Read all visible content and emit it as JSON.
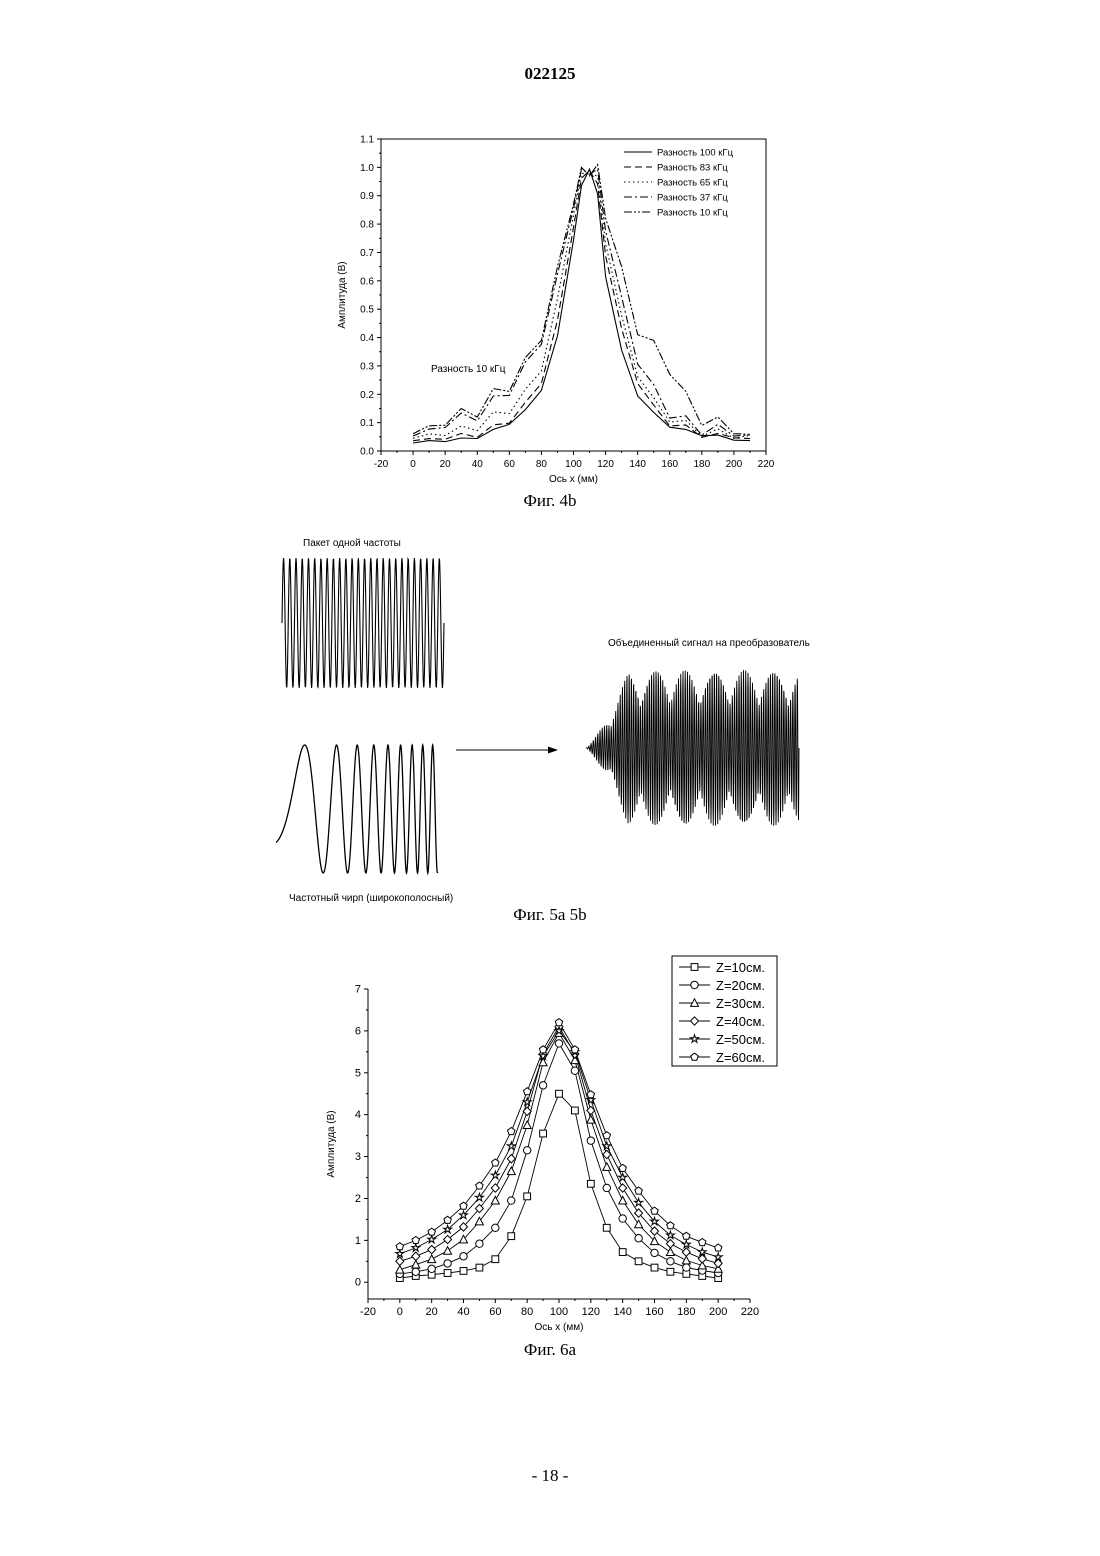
{
  "document": {
    "number": "022125",
    "page_footer": "- 18 -"
  },
  "figures": {
    "fig4b": {
      "caption": "Фиг. 4b",
      "annotation": "Разность 10 кГц"
    },
    "fig5": {
      "caption": "Фиг. 5a 5b",
      "label_single": "Пакет одной частоты",
      "label_chirp": "Частотный чирп (широкополосный)",
      "label_combined": "Объединенный сигнал на преобразователь"
    },
    "fig6a": {
      "caption": "Фиг. 6a"
    }
  },
  "chart_data": [
    {
      "id": "fig4b",
      "type": "line",
      "xlabel": "Ось x (мм)",
      "ylabel": "Амплитуда (В)",
      "xlim": [
        -20,
        220
      ],
      "ylim": [
        0.0,
        1.1
      ],
      "xticks": [
        -20,
        0,
        20,
        40,
        60,
        80,
        100,
        120,
        140,
        160,
        180,
        200,
        220
      ],
      "yticks": [
        "0.0",
        "0.1",
        "0.2",
        "0.3",
        "0.4",
        "0.5",
        "0.6",
        "0.7",
        "0.8",
        "0.9",
        "1.0",
        "1.1"
      ],
      "legend_position": "top-right",
      "series": [
        {
          "name": "Разность 100 кГц",
          "dash": "none",
          "x": [
            0,
            10,
            20,
            30,
            40,
            50,
            60,
            70,
            80,
            90,
            100,
            105,
            110,
            115,
            120,
            130,
            140,
            150,
            160,
            170,
            180,
            190,
            200,
            210
          ],
          "y": [
            0.03,
            0.035,
            0.035,
            0.04,
            0.05,
            0.07,
            0.1,
            0.14,
            0.22,
            0.4,
            0.75,
            0.93,
            1.0,
            0.9,
            0.62,
            0.35,
            0.2,
            0.13,
            0.09,
            0.07,
            0.06,
            0.05,
            0.04,
            0.035
          ]
        },
        {
          "name": "Разность 83 кГц",
          "dash": "7,4",
          "x": [
            0,
            10,
            20,
            30,
            40,
            50,
            60,
            70,
            80,
            90,
            100,
            105,
            110,
            115,
            120,
            130,
            140,
            150,
            160,
            170,
            180,
            190,
            200,
            210
          ],
          "y": [
            0.04,
            0.04,
            0.045,
            0.05,
            0.06,
            0.08,
            0.11,
            0.16,
            0.25,
            0.45,
            0.8,
            0.95,
            1.0,
            0.93,
            0.7,
            0.42,
            0.25,
            0.15,
            0.1,
            0.08,
            0.06,
            0.05,
            0.05,
            0.04
          ]
        },
        {
          "name": "Разность 65 кГц",
          "dash": "1.5,3",
          "x": [
            0,
            10,
            20,
            30,
            40,
            50,
            60,
            70,
            80,
            90,
            100,
            105,
            110,
            115,
            120,
            130,
            140,
            150,
            160,
            170,
            180,
            190,
            200,
            210
          ],
          "y": [
            0.05,
            0.055,
            0.06,
            0.07,
            0.09,
            0.12,
            0.15,
            0.2,
            0.3,
            0.52,
            0.85,
            0.96,
            1.0,
            0.95,
            0.75,
            0.46,
            0.28,
            0.17,
            0.12,
            0.09,
            0.07,
            0.06,
            0.05,
            0.05
          ]
        },
        {
          "name": "Разность 37 кГц",
          "dash": "8,3,2,3",
          "x": [
            0,
            10,
            20,
            30,
            40,
            50,
            60,
            70,
            80,
            90,
            100,
            105,
            110,
            115,
            120,
            130,
            140,
            150,
            160,
            170,
            180,
            190,
            200,
            210
          ],
          "y": [
            0.06,
            0.07,
            0.09,
            0.11,
            0.13,
            0.17,
            0.22,
            0.29,
            0.4,
            0.6,
            0.88,
            0.97,
            1.0,
            0.97,
            0.8,
            0.52,
            0.33,
            0.21,
            0.14,
            0.1,
            0.08,
            0.07,
            0.06,
            0.05
          ]
        },
        {
          "name": "Разность 10 кГц",
          "dash": "8,2,2,2,2,2",
          "x": [
            0,
            10,
            20,
            30,
            40,
            50,
            60,
            70,
            80,
            90,
            100,
            105,
            110,
            115,
            120,
            130,
            140,
            150,
            160,
            170,
            180,
            190,
            200,
            210
          ],
          "y": [
            0.07,
            0.08,
            0.1,
            0.12,
            0.15,
            0.19,
            0.24,
            0.3,
            0.42,
            0.62,
            0.9,
            0.97,
            1.0,
            0.98,
            0.85,
            0.62,
            0.44,
            0.36,
            0.3,
            0.18,
            0.12,
            0.09,
            0.07,
            0.05
          ]
        }
      ]
    },
    {
      "id": "fig6a",
      "type": "line",
      "xlabel": "Ось x (мм)",
      "ylabel": "Амплитуда (В)",
      "xlim": [
        -20,
        220
      ],
      "ylim": [
        -0.4,
        7
      ],
      "xticks": [
        -20,
        0,
        20,
        40,
        60,
        80,
        100,
        120,
        140,
        160,
        180,
        200,
        220
      ],
      "yticks": [
        0,
        1,
        2,
        3,
        4,
        5,
        6,
        7
      ],
      "legend_position": "top-right",
      "x": [
        0,
        10,
        20,
        30,
        40,
        50,
        60,
        70,
        80,
        90,
        100,
        110,
        120,
        130,
        140,
        150,
        160,
        170,
        180,
        190,
        200
      ],
      "series": [
        {
          "name": "Z=10см.",
          "marker": "square",
          "values": [
            0.1,
            0.15,
            0.18,
            0.22,
            0.27,
            0.35,
            0.55,
            1.1,
            2.05,
            3.55,
            4.5,
            4.1,
            2.35,
            1.3,
            0.72,
            0.5,
            0.35,
            0.25,
            0.2,
            0.15,
            0.1
          ]
        },
        {
          "name": "Z=20см.",
          "marker": "circle",
          "values": [
            0.2,
            0.25,
            0.32,
            0.45,
            0.62,
            0.92,
            1.3,
            1.95,
            3.15,
            4.7,
            5.7,
            5.05,
            3.38,
            2.25,
            1.52,
            1.05,
            0.7,
            0.5,
            0.35,
            0.28,
            0.22
          ]
        },
        {
          "name": "Z=30см.",
          "marker": "triangle",
          "values": [
            0.3,
            0.42,
            0.55,
            0.75,
            1.02,
            1.45,
            1.95,
            2.65,
            3.75,
            5.25,
            5.95,
            5.3,
            3.88,
            2.75,
            1.95,
            1.38,
            0.98,
            0.72,
            0.52,
            0.4,
            0.32
          ]
        },
        {
          "name": "Z=40см.",
          "marker": "diamond",
          "values": [
            0.5,
            0.62,
            0.78,
            1.02,
            1.32,
            1.76,
            2.25,
            2.95,
            4.08,
            5.45,
            6.1,
            5.45,
            4.1,
            3.05,
            2.25,
            1.65,
            1.22,
            0.92,
            0.72,
            0.56,
            0.45
          ]
        },
        {
          "name": "Z=50см.",
          "marker": "star",
          "values": [
            0.68,
            0.82,
            1.02,
            1.26,
            1.6,
            2.02,
            2.55,
            3.25,
            4.3,
            5.4,
            6.0,
            5.5,
            4.35,
            3.25,
            2.5,
            1.9,
            1.45,
            1.12,
            0.9,
            0.72,
            0.6
          ]
        },
        {
          "name": "Z=60см.",
          "marker": "pentagon",
          "values": [
            0.85,
            1.0,
            1.2,
            1.48,
            1.82,
            2.3,
            2.85,
            3.6,
            4.55,
            5.55,
            6.2,
            5.55,
            4.48,
            3.5,
            2.72,
            2.18,
            1.7,
            1.35,
            1.1,
            0.95,
            0.82
          ]
        }
      ]
    }
  ]
}
